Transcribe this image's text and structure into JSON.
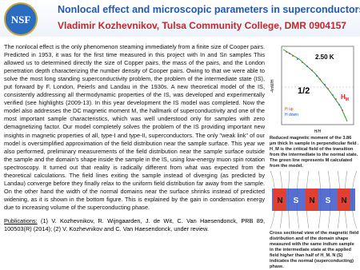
{
  "header": {
    "logo": "NSF",
    "title": "Nonlocal effect and microscopic parameters in  superconductors",
    "author": "Vladimir Kozhevnikov, Tulsa Community College, DMR 0904157"
  },
  "body": {
    "text": "The nonlocal effect is the only phenomenon steaming immediately from a finite size of Cooper pairs. Predicted in 1953, it was for the first time measured in this project with In and Sn samples This allowed us to determined directly the size of Copper pairs, the mass of the pairs, and the London penetration depth characterizing the number density of Cooper pairs.  Owing to that we were able to solve the most long standing superconductivity problem, the problem of the intermediate state (IS), put forward by F. London, Peierls and Landau in the 1930s. A new theoretical model of the IS, consistently addressing all thermodynamic properties of the IS, was developed and experimentally verified (see highlights (2009-13). In this year development the IS model was completed. Now the model also addresses the DC magnetic moment M, the hallmark of superconductivity and one of the most important sample characteristics, which was well understood only for samples with zero demagnetizing factor. Our model completely solves the problem of the IS providing important new insights in magnetic properties of all, type-I and type-II, superconductors. The only \"weak link\" of our model is oversimplified approximation of the field distribution near the sample surface. This year we also performed, preliminary measurements of the field distribution near the sample surface outside the sample and the domain's shape inside the sample in the IS, using low-energy muon spin rotation spectroscopy. It turned out that reality is radically different from what was expected from the theoretical calculations. The field lines exiting the sample instead of diverging (as predicted by Landau) converge before they finally relax to the uniform field distribution far away from the sample. On the other hand the width of the normal domains near the surface shrinks instead of predicted widening, as it is shown in the bottom figure. This is explained by the gain in condensation energy due to increasing volume of the superconducting phase.",
    "publications_label": "Publications:",
    "publications": "(1) V. Kozhevnikov, R. Wijngaarden, J. de Wit, C. Van Haesendonck, PRB 89, 100503(R) (2014); (2) V. Kozhevnikov and C. Van Haesendonck, under review."
  },
  "figure1": {
    "temperature": "2.50 K",
    "half": "1/2",
    "hm": "H",
    "hm_sub": "M",
    "legend": [
      "H up",
      "H down"
    ],
    "y_label": "-4πM/H",
    "x_label": "H/H",
    "caption": "Reduced magnetic moment of the 3.86 μm thick In sample in perpendicular field . H_M is the critical field of the transition from the intermediate to the normal state. The green line represents M calculated from the model."
  },
  "figure2": {
    "domains": [
      "N",
      "S",
      "N",
      "S",
      "N"
    ],
    "caption": "Cross sectional view of the magnetic field distribution and of the domain shape measured with the same indium sample in the intermediate state at the applied field higher than half of H_M. N (S) indicates the normal (superconducting) phase."
  }
}
